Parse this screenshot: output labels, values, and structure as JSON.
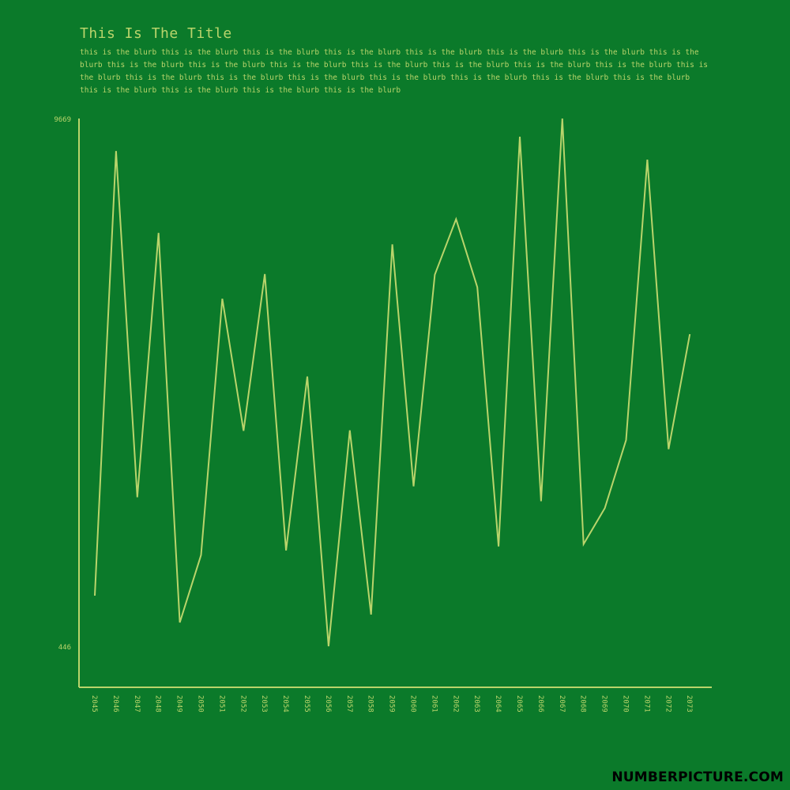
{
  "title": "This Is The Title",
  "blurb": "this is the blurb this is the blurb this is the blurb this is the blurb this is the blurb this is the blurb this is the blurb this is the blurb this is the blurb this is the blurb this is the blurb this is the blurb this is the blurb this is the blurb this is the blurb this is the blurb this is the blurb this is the blurb this is the blurb this is the blurb this is the blurb this is the blurb this is the blurb this is the blurb this is the blurb this is the blurb this is the blurb",
  "watermark": "NUMBERPICTURE.COM",
  "colors": {
    "background": "#0b7a2a",
    "accent": "#b9d46b",
    "watermark": "#000000"
  },
  "chart_data": {
    "type": "line",
    "title": "This Is The Title",
    "xlabel": "",
    "ylabel": "",
    "x": [
      "2045",
      "2046",
      "2047",
      "2048",
      "2049",
      "2050",
      "2051",
      "2052",
      "2053",
      "2054",
      "2055",
      "2056",
      "2057",
      "2058",
      "2059",
      "2060",
      "2061",
      "2062",
      "2063",
      "2064",
      "2065",
      "2066",
      "2067",
      "2068",
      "2069",
      "2070",
      "2071",
      "2072",
      "2073"
    ],
    "values": [
      1330,
      9100,
      3050,
      7670,
      860,
      2040,
      6520,
      4210,
      6950,
      2120,
      5160,
      446,
      4220,
      1000,
      7470,
      3240,
      6940,
      7910,
      6720,
      2190,
      9350,
      2980,
      9669,
      2230,
      2860,
      4050,
      8950,
      3890,
      5900
    ],
    "y_ticks": [
      "9669",
      "446"
    ],
    "ylim": [
      446,
      9669
    ],
    "grid": false,
    "legend": "none"
  }
}
